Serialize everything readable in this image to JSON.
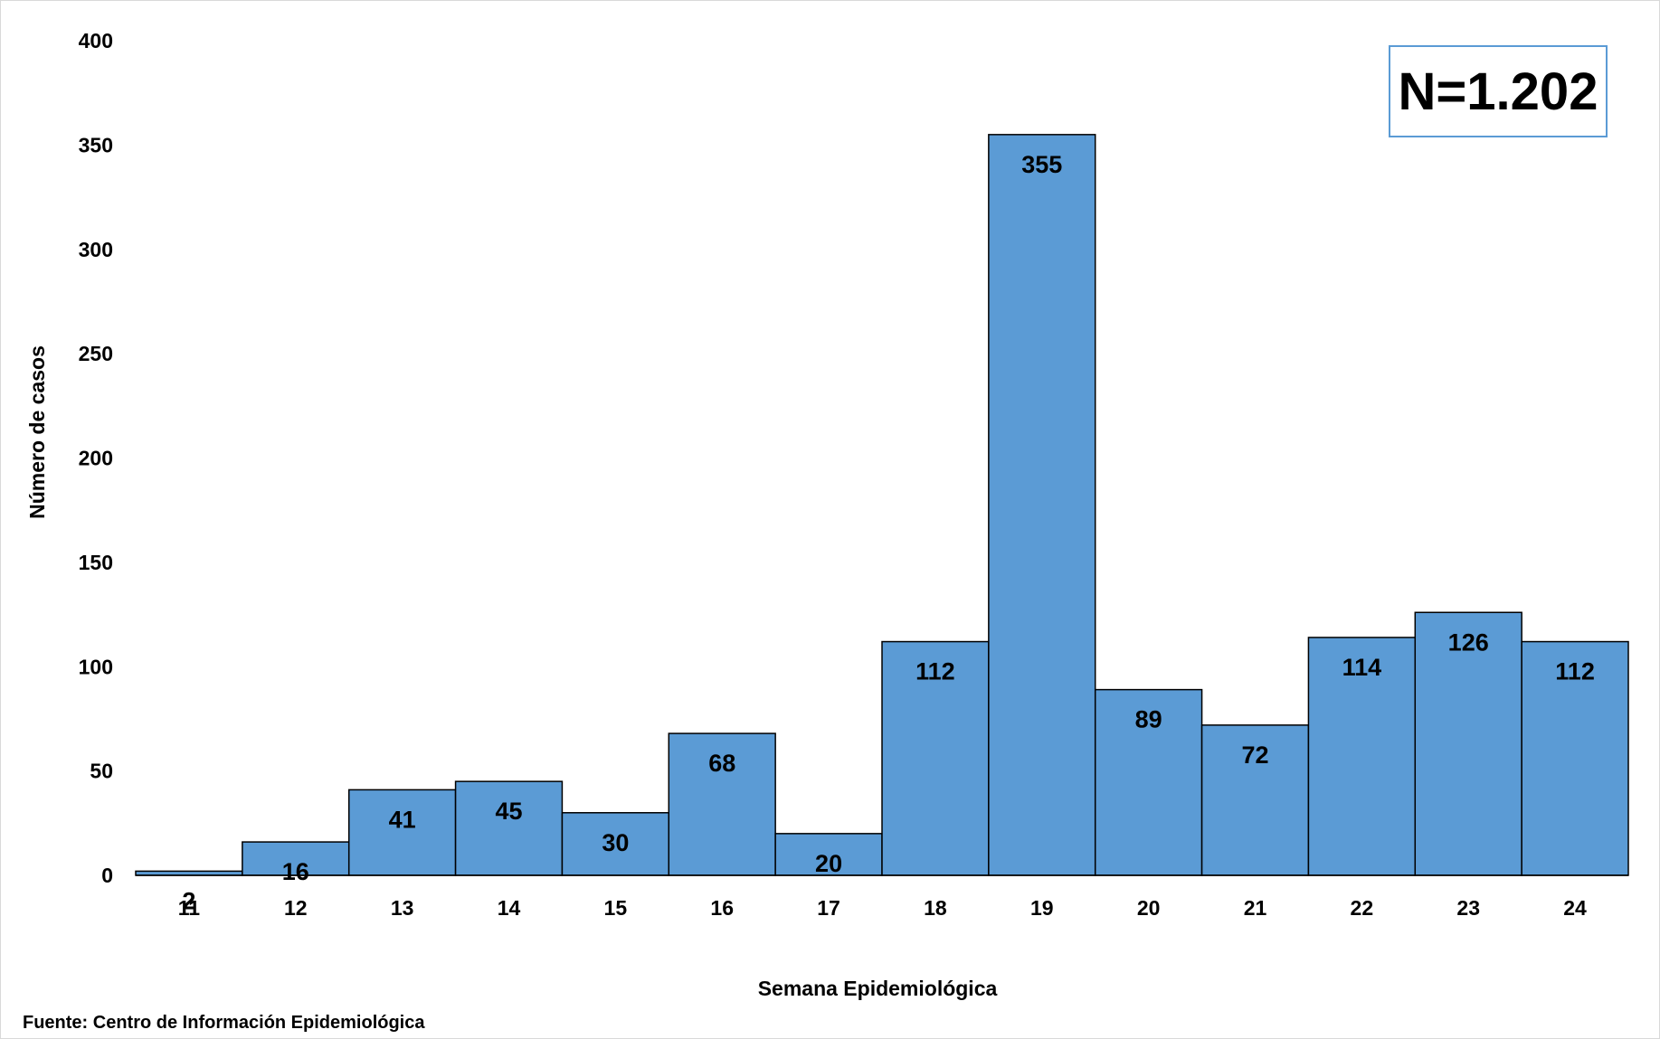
{
  "chart_data": {
    "type": "bar",
    "title": "",
    "xlabel": "Semana Epidemiológica",
    "ylabel": "Número de casos",
    "categories": [
      "11",
      "12",
      "13",
      "14",
      "15",
      "16",
      "17",
      "18",
      "19",
      "20",
      "21",
      "22",
      "23",
      "24"
    ],
    "values": [
      2,
      16,
      41,
      45,
      30,
      68,
      20,
      112,
      355,
      89,
      72,
      114,
      126,
      112
    ],
    "ylim": [
      0,
      400
    ],
    "yticks": [
      0,
      50,
      100,
      150,
      200,
      250,
      300,
      350,
      400
    ],
    "grid": false,
    "bar_color": "#5b9bd5",
    "bar_edge_color": "#000000",
    "annotation": "N=1.202",
    "source": "Fuente: Centro de Información Epidemiológica"
  }
}
